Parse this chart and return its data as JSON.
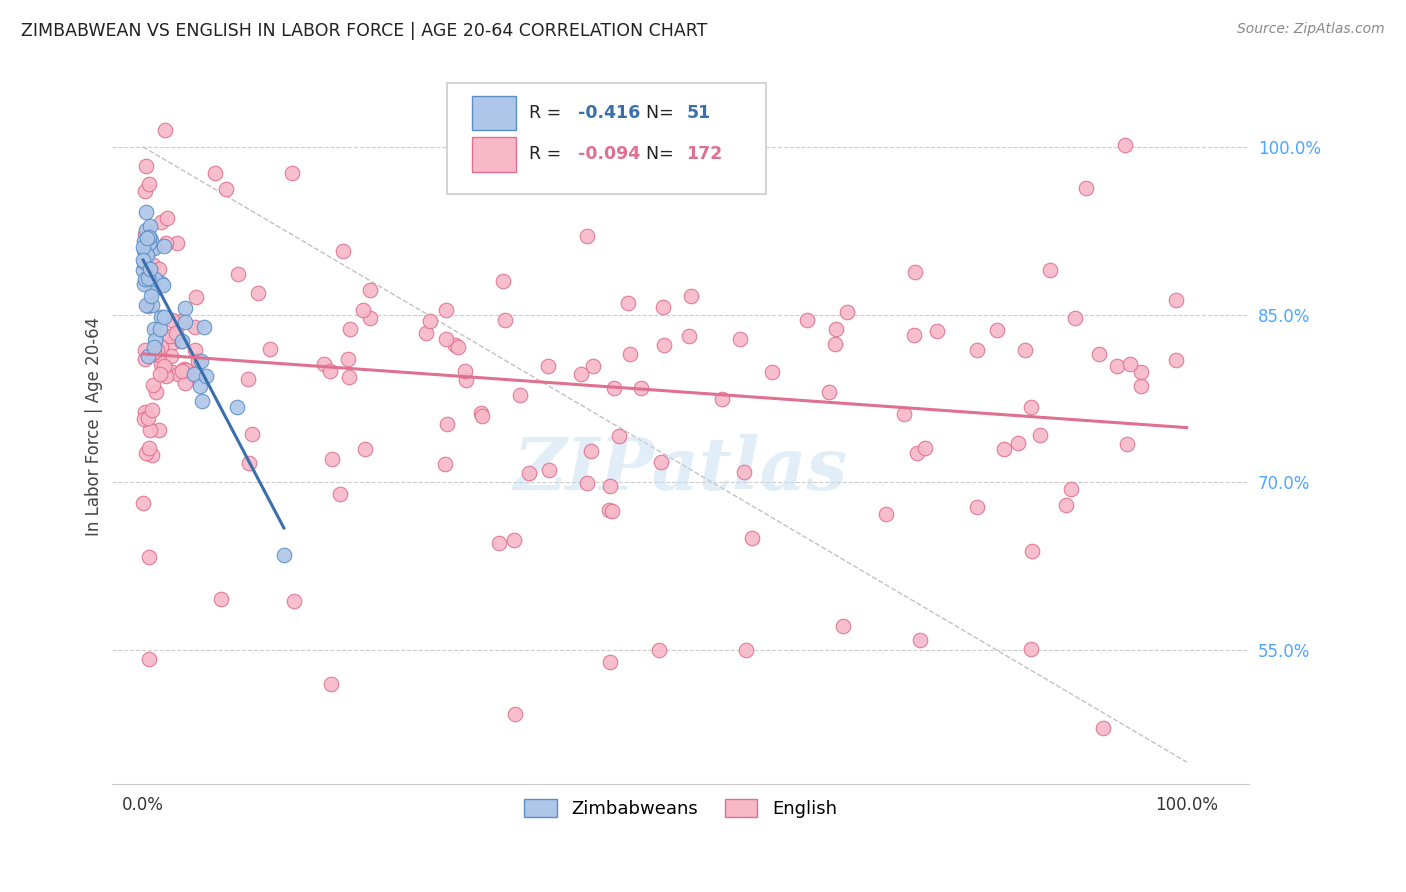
{
  "title": "ZIMBABWEAN VS ENGLISH IN LABOR FORCE | AGE 20-64 CORRELATION CHART",
  "source": "Source: ZipAtlas.com",
  "ylabel": "In Labor Force | Age 20-64",
  "blue_color": "#aec6e8",
  "blue_edge_color": "#5b8ec4",
  "blue_line_color": "#3a6fad",
  "pink_color": "#f7b8c8",
  "pink_edge_color": "#e07090",
  "pink_line_color": "#e07090",
  "watermark_color": "#c5ddf0",
  "background_color": "#ffffff",
  "grid_color": "#cccccc",
  "axis_color": "#4da6ff",
  "title_color": "#222222",
  "source_color": "#888888",
  "ylabel_color": "#444444",
  "r_blue": "-0.416",
  "n_blue": "51",
  "r_pink": "-0.094",
  "n_pink": "172",
  "xlim": [
    -0.03,
    1.06
  ],
  "ylim": [
    0.43,
    1.07
  ],
  "yticks": [
    0.55,
    0.7,
    0.85,
    1.0
  ],
  "xticks": [
    0.0,
    1.0
  ],
  "ytick_labels": [
    "55.0%",
    "70.0%",
    "85.0%",
    "100.0%"
  ],
  "xtick_labels": [
    "0.0%",
    "100.0%"
  ]
}
